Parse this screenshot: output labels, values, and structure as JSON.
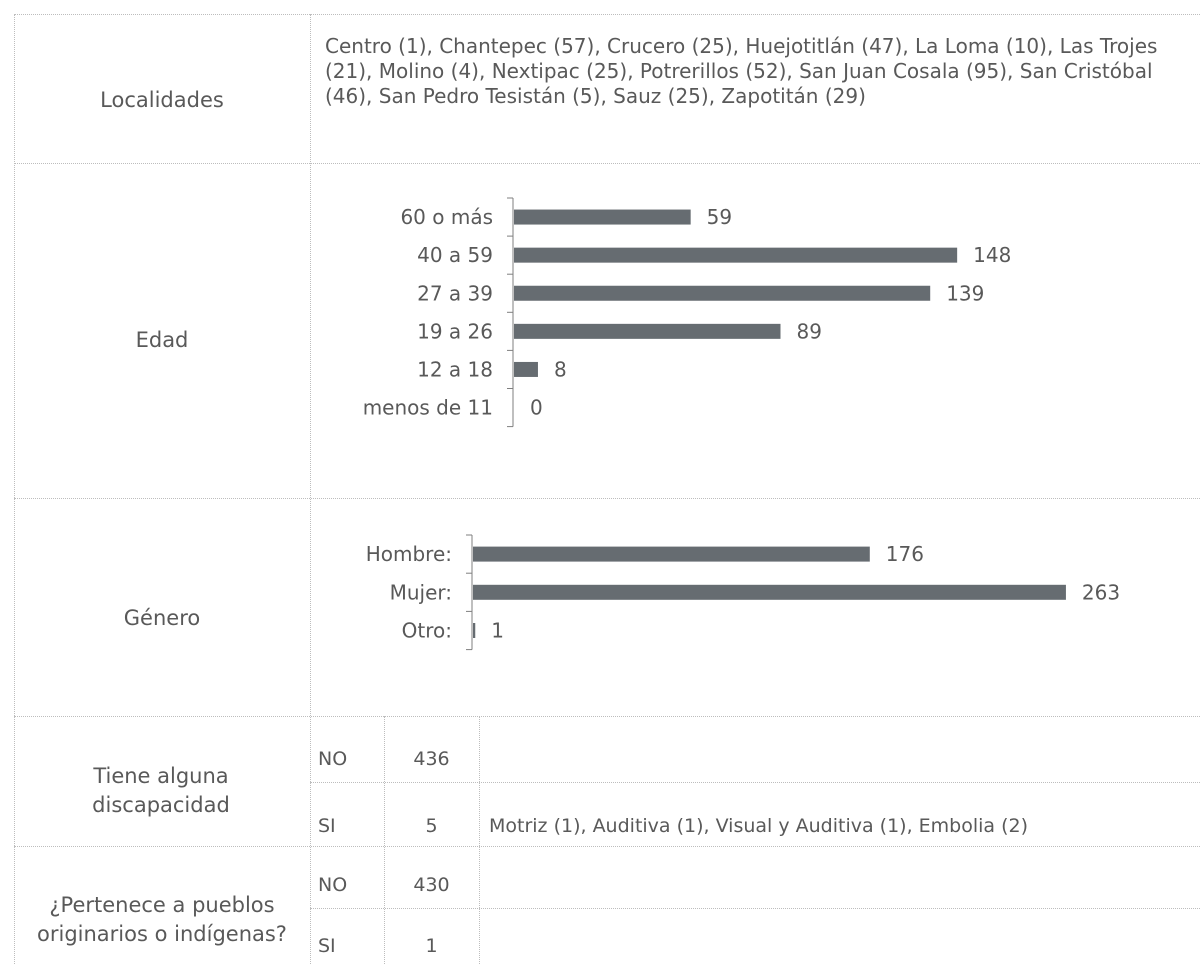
{
  "table": {
    "localidades": {
      "label": "Localidades",
      "text": "Centro (1), Chantepec (57), Crucero (25), Huejotitlán (47), La Loma (10), Las Trojes (21), Molino (4), Nextipac (25), Potrerillos (52), San Juan Cosala (95), San Cristóbal (46), San Pedro Tesistán (5), Sauz (25), Zapotitán (29)"
    },
    "edad": {
      "label": "Edad"
    },
    "genero": {
      "label": "Género"
    },
    "discapacidad": {
      "label": "Tiene alguna discapacidad",
      "rows": [
        {
          "answer": "NO",
          "count": "436",
          "detail": ""
        },
        {
          "answer": "SI",
          "count": "5",
          "detail": "Motriz (1), Auditiva (1), Visual y Auditiva (1), Embolia (2)"
        }
      ]
    },
    "pueblos": {
      "label": "¿Pertenece a pueblos originarios o indígenas?",
      "rows": [
        {
          "answer": "NO",
          "count": "430",
          "detail": ""
        },
        {
          "answer": "SI",
          "count": "1",
          "detail": ""
        }
      ]
    }
  },
  "chart_data": [
    {
      "type": "bar",
      "orientation": "horizontal",
      "categories": [
        "60 o más",
        "40 a 59",
        "27 a 39",
        "19 a 26",
        "12 a 18",
        "menos de 11"
      ],
      "values": [
        59,
        148,
        139,
        89,
        8,
        0
      ],
      "xlim": [
        0,
        180
      ],
      "grid": false,
      "bar_color": "#666c71"
    },
    {
      "type": "bar",
      "orientation": "horizontal",
      "categories": [
        "Hombre:",
        "Mujer:",
        "Otro:"
      ],
      "values": [
        176,
        263,
        1
      ],
      "xlim": [
        0,
        290
      ],
      "grid": false,
      "bar_color": "#666c71"
    }
  ]
}
